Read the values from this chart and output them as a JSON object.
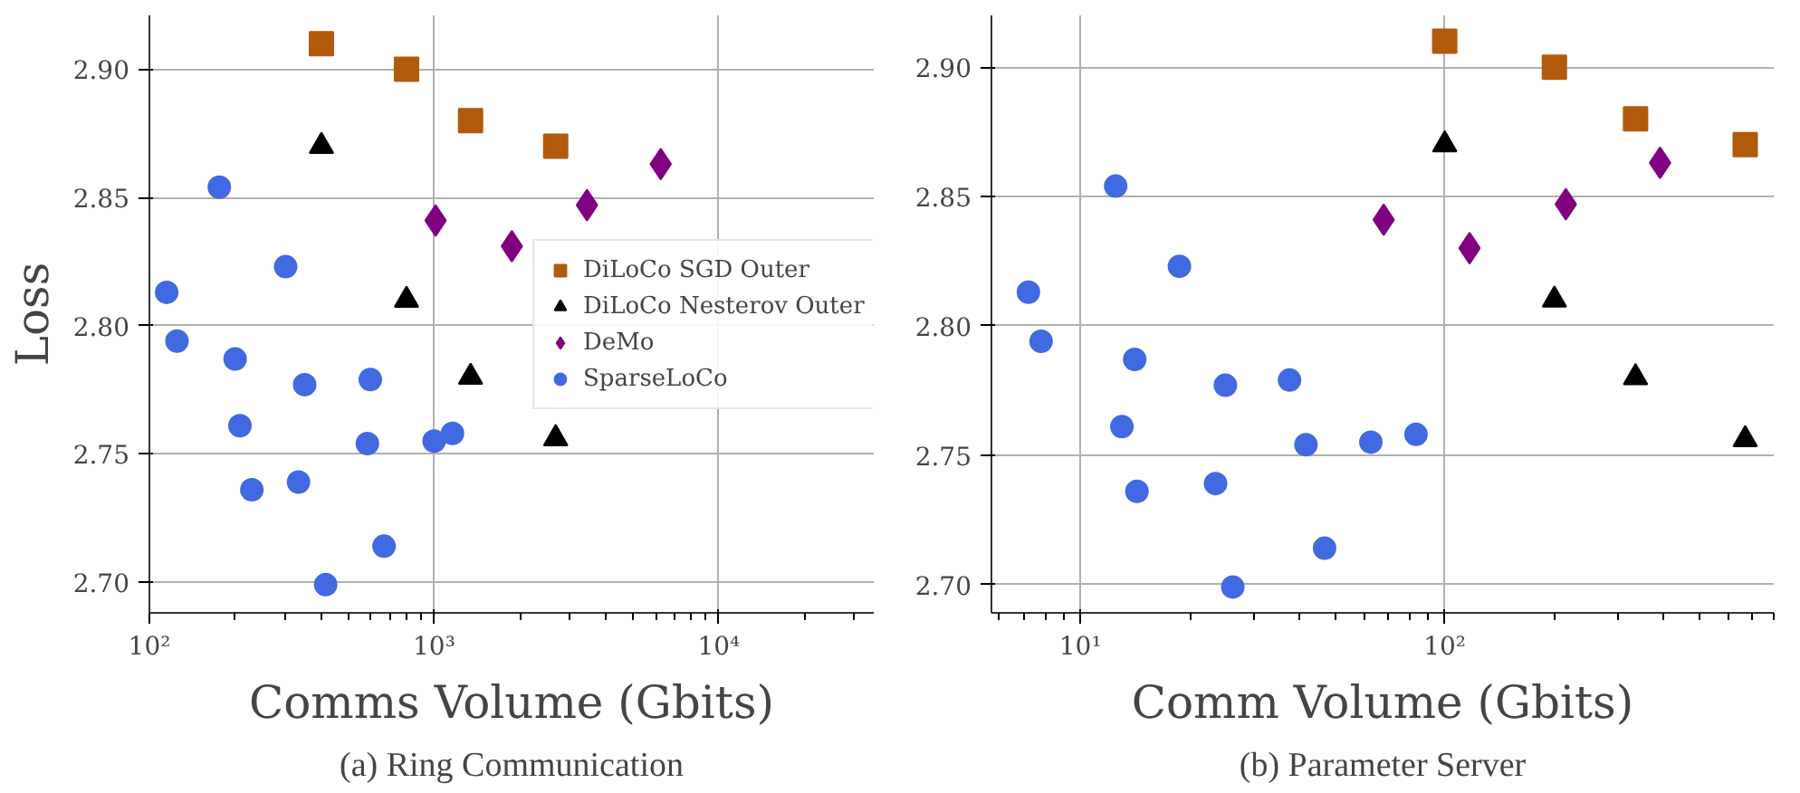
{
  "chart_data": [
    {
      "type": "scatter",
      "title": "(a) Ring Communication",
      "xlabel": "Comms Volume (Gbits)",
      "ylabel": "Loss",
      "log": "x",
      "grid": true,
      "legend": "right",
      "xlim": [
        100,
        35000
      ],
      "ylim": [
        2.688,
        2.921
      ],
      "xticks": [
        {
          "value": 100,
          "label": "10²"
        },
        {
          "value": 1000,
          "label": "10³"
        },
        {
          "value": 10000,
          "label": "10⁴"
        }
      ],
      "yticks": [
        {
          "value": 2.7,
          "label": "2.70"
        },
        {
          "value": 2.75,
          "label": "2.75"
        },
        {
          "value": 2.8,
          "label": "2.80"
        },
        {
          "value": 2.85,
          "label": "2.85"
        },
        {
          "value": 2.9,
          "label": "2.90"
        }
      ],
      "series": [
        {
          "name": "DiLoCo SGD Outer",
          "color": "#b15a0c",
          "marker": "square",
          "x": [
            402,
            800,
            1343,
            2673
          ],
          "values": [
            2.91,
            2.9,
            2.88,
            2.87
          ]
        },
        {
          "name": "DiLoCo Nesterov Outer",
          "color": "#000000",
          "marker": "triangle",
          "x": [
            402,
            800,
            1343,
            2673
          ],
          "values": [
            2.87,
            2.81,
            2.78,
            2.756
          ]
        },
        {
          "name": "DeMo",
          "color": "#800080",
          "marker": "diamond",
          "x": [
            1012,
            1875,
            3443,
            6250
          ],
          "values": [
            2.841,
            2.831,
            2.847,
            2.863
          ]
        },
        {
          "name": "SparseLoCo",
          "color": "#4169e1",
          "marker": "circle",
          "x": [
            115,
            125,
            176,
            200,
            208,
            229,
            301,
            334,
            351,
            416,
            583,
            597,
            667,
            1000,
            1160
          ],
          "values": [
            2.813,
            2.794,
            2.854,
            2.787,
            2.761,
            2.736,
            2.823,
            2.739,
            2.777,
            2.699,
            2.754,
            2.779,
            2.714,
            2.755,
            2.758
          ]
        }
      ]
    },
    {
      "type": "scatter",
      "title": "(b) Parameter Server",
      "xlabel": "Comm Volume (Gbits)",
      "log": "x",
      "grid": true,
      "xlim": [
        5.7,
        800
      ],
      "ylim": [
        2.689,
        2.92
      ],
      "xticks": [
        {
          "value": 10,
          "label": "10¹"
        },
        {
          "value": 100,
          "label": "10²"
        }
      ],
      "yticks": [
        {
          "value": 2.7,
          "label": "2.70"
        },
        {
          "value": 2.75,
          "label": "2.75"
        },
        {
          "value": 2.8,
          "label": "2.80"
        },
        {
          "value": 2.85,
          "label": "2.85"
        },
        {
          "value": 2.9,
          "label": "2.90"
        }
      ],
      "series": [
        {
          "color": "#b15a0c",
          "marker": "square",
          "x": [
            100,
            200,
            334,
            668
          ],
          "values": [
            2.91,
            2.9,
            2.88,
            2.87
          ]
        },
        {
          "color": "#000000",
          "marker": "triangle",
          "x": [
            100,
            200,
            334,
            668
          ],
          "values": [
            2.87,
            2.81,
            2.78,
            2.756
          ]
        },
        {
          "color": "#800080",
          "marker": "diamond",
          "x": [
            68,
            117,
            215,
            390
          ],
          "values": [
            2.841,
            2.83,
            2.847,
            2.863
          ]
        },
        {
          "color": "#4169e1",
          "marker": "circle",
          "x": [
            7.2,
            7.8,
            12.5,
            13.0,
            14.1,
            14.3,
            18.7,
            23.5,
            25.0,
            26.2,
            37.5,
            41.6,
            46.8,
            62.7,
            83.4
          ],
          "values": [
            2.813,
            2.794,
            2.854,
            2.761,
            2.787,
            2.736,
            2.823,
            2.739,
            2.777,
            2.699,
            2.779,
            2.754,
            2.714,
            2.755,
            2.758
          ]
        }
      ]
    }
  ]
}
